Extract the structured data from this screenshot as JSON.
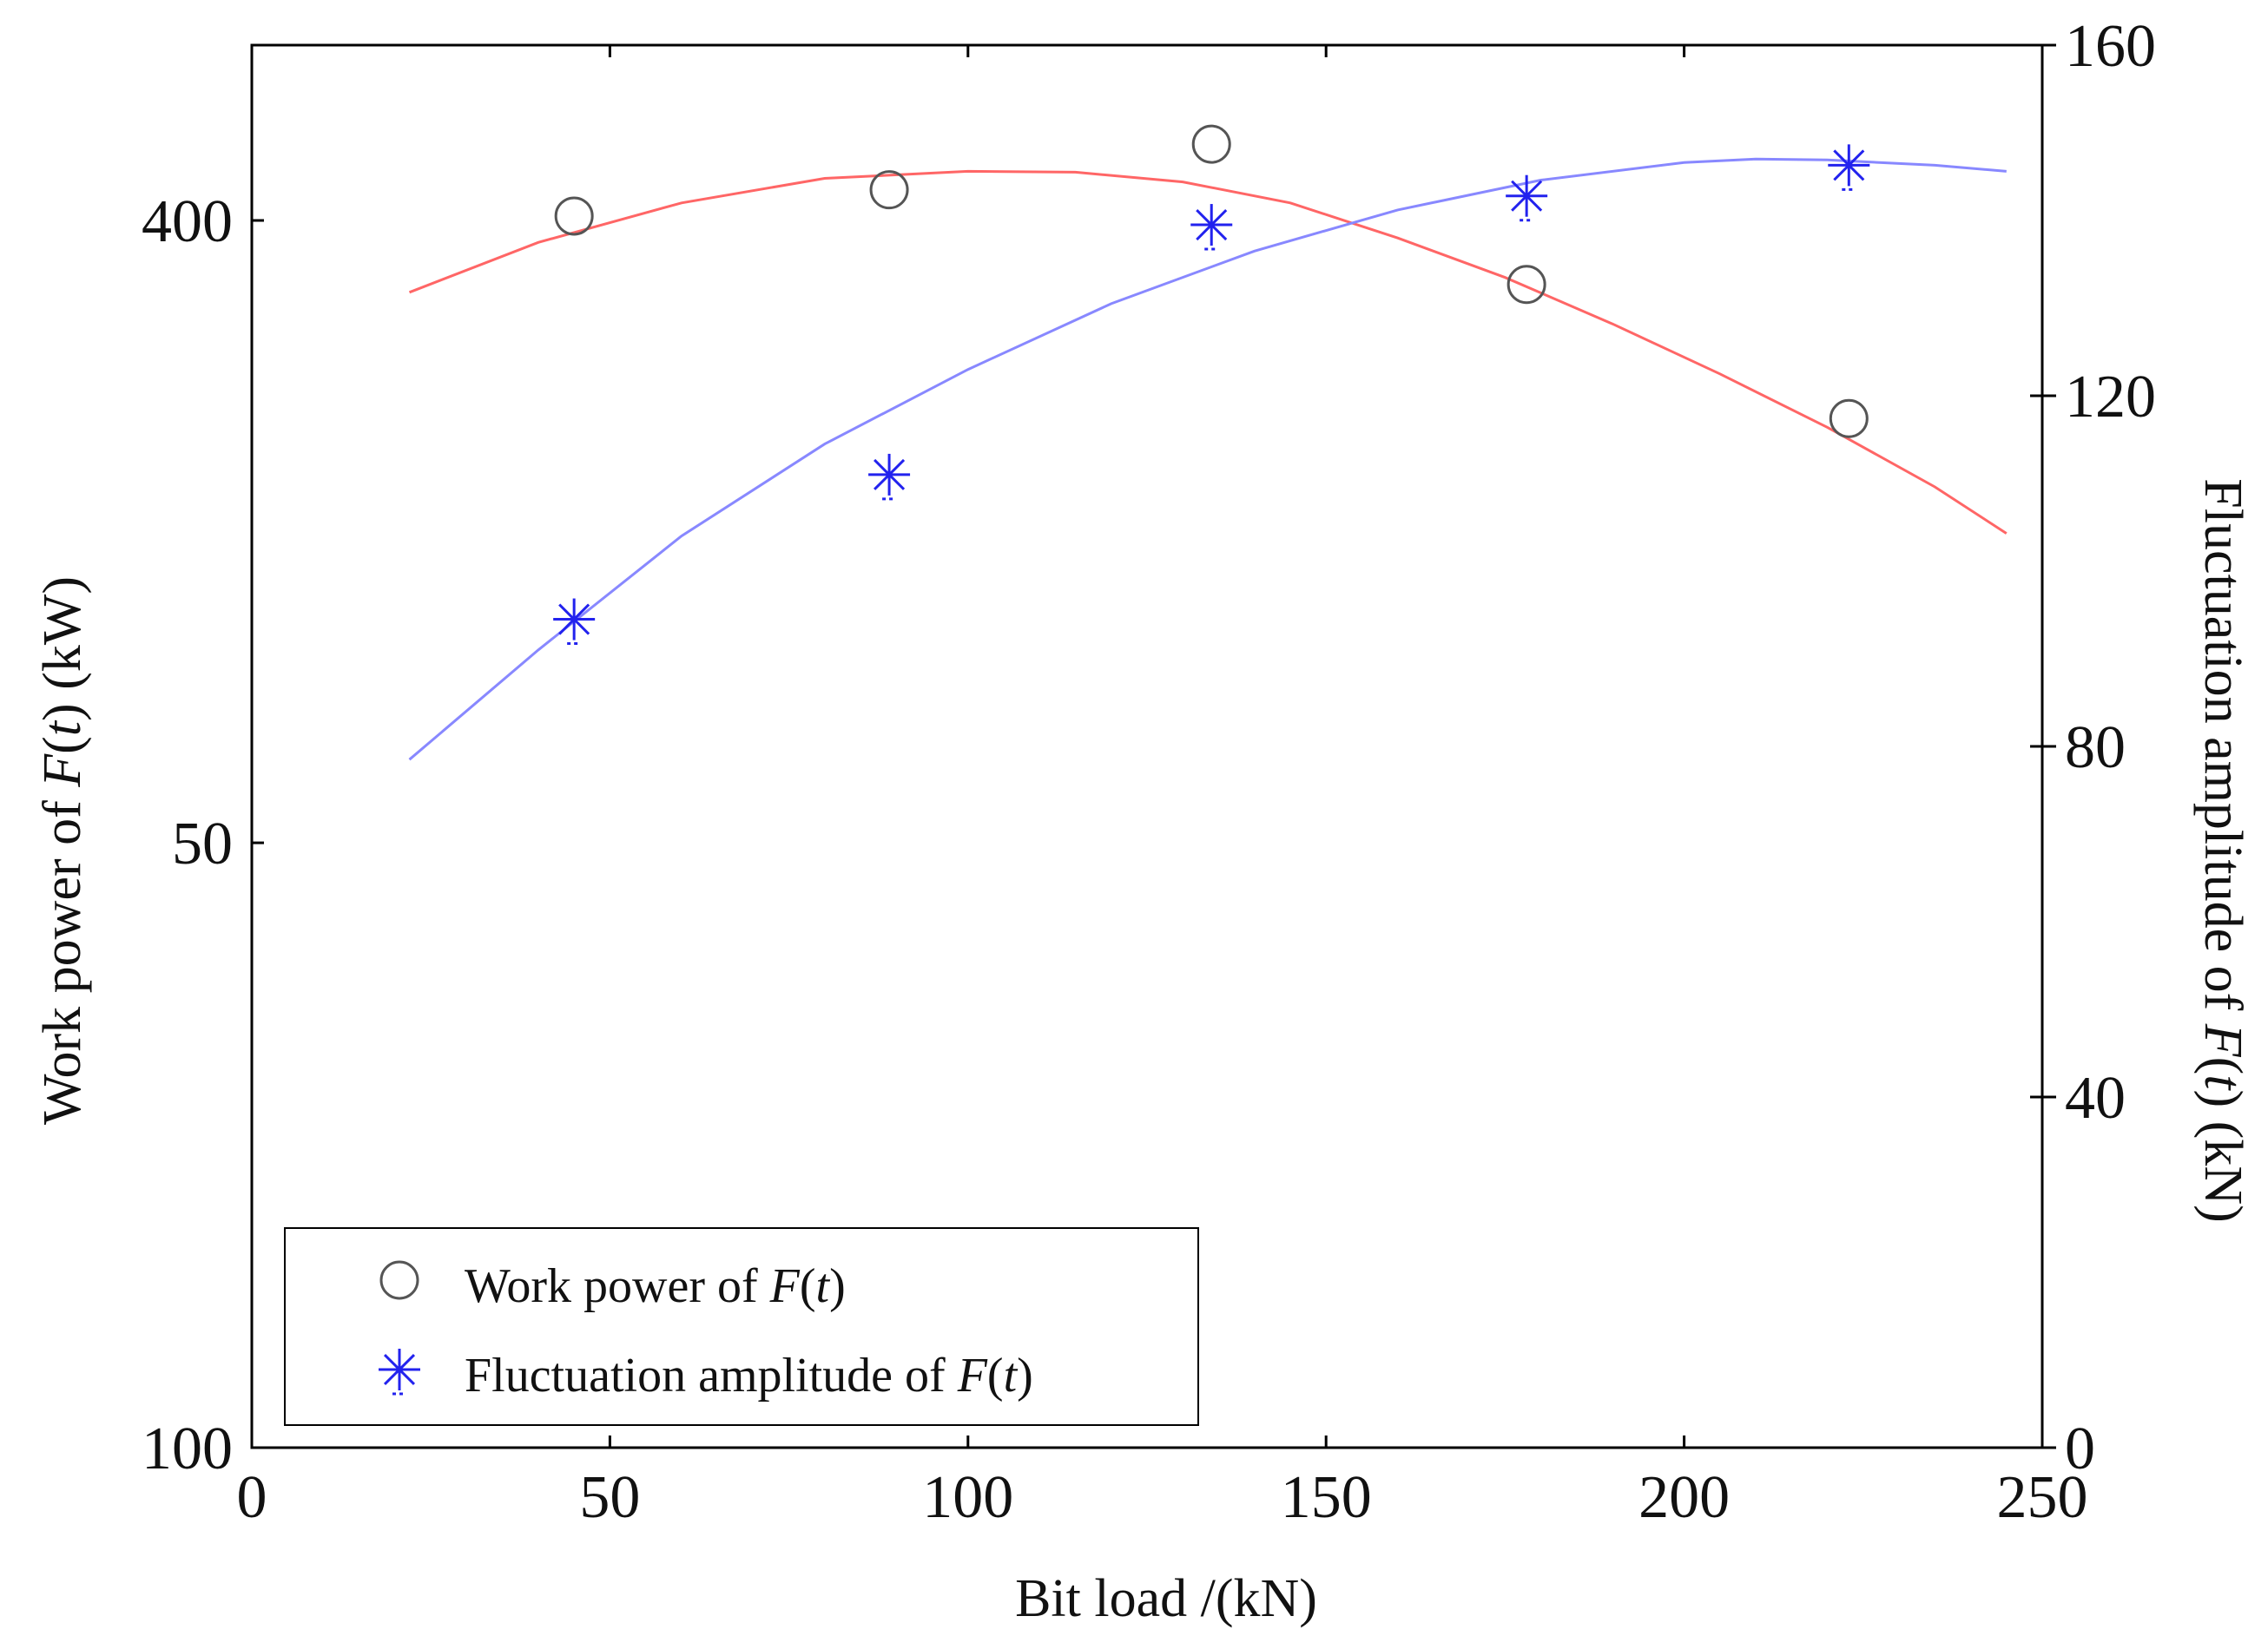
{
  "chart_data": {
    "type": "scatter",
    "title": "",
    "xlabel": "Bit load /(kN)",
    "ylabel_left": "Work power of F(t) (kW)",
    "ylabel_right": "Fluctuation amplitude of F(t) (kN)",
    "xlim": [
      0,
      250
    ],
    "x_ticks": [
      0,
      50,
      100,
      150,
      200,
      250
    ],
    "y_left_ticks": [
      {
        "label": "400",
        "value": 400
      },
      {
        "label": "50",
        "value": 50
      },
      {
        "label": "100",
        "value": 100
      }
    ],
    "y_right_ticks": [
      0,
      40,
      80,
      120,
      160
    ],
    "y_right_lim": [
      0,
      160
    ],
    "legend_position": "lower-left",
    "series": [
      {
        "name": "Work power of F(t)",
        "axis": "left",
        "marker": "circle",
        "color": "#555555",
        "fit_color": "#ff6666",
        "x": [
          45,
          89,
          134,
          178,
          223
        ],
        "y_scaled": [
          140.5,
          143.5,
          148.7,
          132.7,
          117.4
        ],
        "fit_x": [
          22,
          40,
          60,
          80,
          100,
          115,
          130,
          145,
          160,
          175,
          190,
          205,
          220,
          235,
          245
        ],
        "fit_y_scaled": [
          131.8,
          137.5,
          142.0,
          144.8,
          145.6,
          145.5,
          144.4,
          142.0,
          138.0,
          133.5,
          128.2,
          122.5,
          116.4,
          109.6,
          104.3
        ]
      },
      {
        "name": "Fluctuation amplitude of F(t)",
        "axis": "right",
        "marker": "asterisk",
        "color": "#2222ee",
        "fit_color": "#8888ff",
        "x": [
          45,
          89,
          134,
          178,
          223
        ],
        "y": [
          94.5,
          111.0,
          139.5,
          142.8,
          146.3
        ],
        "fit_x": [
          22,
          40,
          60,
          80,
          100,
          120,
          140,
          160,
          180,
          200,
          210,
          220,
          235,
          245
        ],
        "fit_y": [
          78.5,
          91.0,
          104.0,
          114.5,
          123.0,
          130.5,
          136.5,
          141.2,
          144.6,
          146.6,
          147.0,
          146.9,
          146.3,
          145.6
        ]
      }
    ]
  }
}
